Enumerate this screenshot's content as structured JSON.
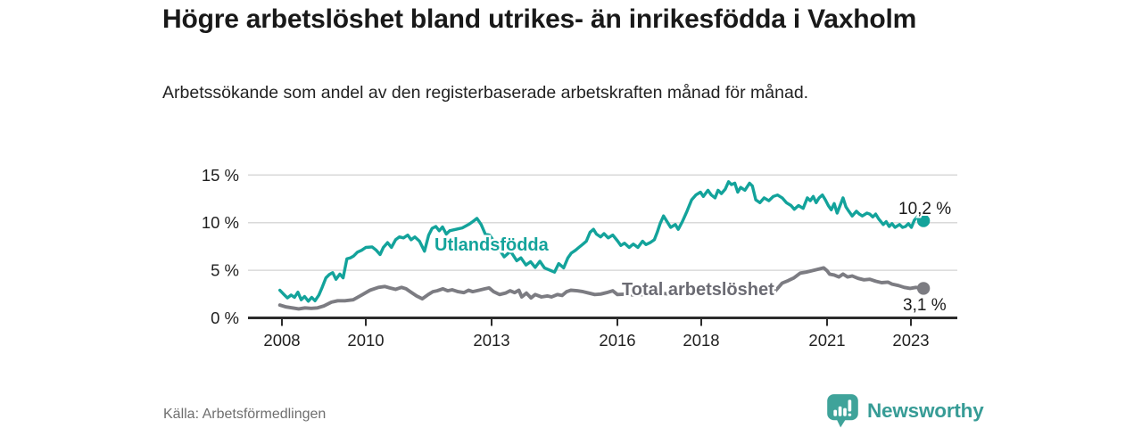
{
  "header": {
    "title": "Högre arbetslöshet bland utrikes- än inrikesfödda i Vaxholm",
    "subtitle": "Arbetssökande som andel av den registerbaserade arbetskraften månad för månad."
  },
  "footer": {
    "source": "Källa: Arbetsförmedlingen",
    "brand_name": "Newsworthy",
    "brand_color": "#379c96",
    "brand_icon_color": "#3fa39a"
  },
  "chart_data": {
    "type": "line",
    "unit": "percent of registered labour force",
    "grid": "horizontal",
    "x_axis": {
      "ticks": [
        2008,
        2010,
        2013,
        2016,
        2018,
        2021,
        2023
      ],
      "range": [
        2007.8,
        2024.1
      ]
    },
    "y_axis": {
      "ticks": [
        0,
        5,
        10,
        15
      ],
      "tick_suffix": " %",
      "range": [
        0,
        15.5
      ]
    },
    "series": [
      {
        "name": "Utlandsfödda",
        "color": "#13a39b",
        "label_color": "#13a39b",
        "end_value": 10.2,
        "end_value_label": "10,2 %",
        "points": [
          [
            2007.95,
            2.9
          ],
          [
            2008.05,
            2.45
          ],
          [
            2008.13,
            2.1
          ],
          [
            2008.22,
            2.4
          ],
          [
            2008.3,
            2.15
          ],
          [
            2008.38,
            2.7
          ],
          [
            2008.46,
            1.9
          ],
          [
            2008.54,
            2.25
          ],
          [
            2008.63,
            1.75
          ],
          [
            2008.71,
            2.15
          ],
          [
            2008.79,
            1.8
          ],
          [
            2008.88,
            2.4
          ],
          [
            2008.96,
            3.2
          ],
          [
            2009.05,
            4.2
          ],
          [
            2009.13,
            4.55
          ],
          [
            2009.21,
            4.75
          ],
          [
            2009.29,
            4.05
          ],
          [
            2009.38,
            4.6
          ],
          [
            2009.46,
            4.2
          ],
          [
            2009.55,
            6.2
          ],
          [
            2009.63,
            6.3
          ],
          [
            2009.71,
            6.5
          ],
          [
            2009.8,
            6.9
          ],
          [
            2009.9,
            7.1
          ],
          [
            2010.0,
            7.4
          ],
          [
            2010.15,
            7.45
          ],
          [
            2010.25,
            7.1
          ],
          [
            2010.34,
            6.65
          ],
          [
            2010.42,
            7.4
          ],
          [
            2010.52,
            7.9
          ],
          [
            2010.61,
            7.4
          ],
          [
            2010.71,
            8.2
          ],
          [
            2010.8,
            8.5
          ],
          [
            2010.9,
            8.4
          ],
          [
            2011.0,
            8.7
          ],
          [
            2011.08,
            8.2
          ],
          [
            2011.17,
            8.5
          ],
          [
            2011.28,
            8.05
          ],
          [
            2011.4,
            7.0
          ],
          [
            2011.5,
            8.7
          ],
          [
            2011.58,
            9.4
          ],
          [
            2011.67,
            9.6
          ],
          [
            2011.75,
            9.15
          ],
          [
            2011.83,
            9.55
          ],
          [
            2011.92,
            8.8
          ],
          [
            2012.0,
            9.15
          ],
          [
            2012.15,
            9.3
          ],
          [
            2012.3,
            9.45
          ],
          [
            2012.45,
            9.8
          ],
          [
            2012.55,
            10.1
          ],
          [
            2012.65,
            10.45
          ],
          [
            2012.75,
            9.8
          ],
          [
            2012.85,
            8.8
          ],
          [
            2012.95,
            8.7
          ],
          [
            2013.1,
            7.75
          ],
          [
            2013.3,
            6.4
          ],
          [
            2013.45,
            7.0
          ],
          [
            2013.6,
            6.0
          ],
          [
            2013.7,
            6.3
          ],
          [
            2013.82,
            5.55
          ],
          [
            2013.93,
            5.9
          ],
          [
            2014.04,
            5.3
          ],
          [
            2014.15,
            5.95
          ],
          [
            2014.26,
            5.25
          ],
          [
            2014.5,
            4.8
          ],
          [
            2014.6,
            5.7
          ],
          [
            2014.72,
            5.25
          ],
          [
            2014.82,
            6.3
          ],
          [
            2014.9,
            6.8
          ],
          [
            2015.0,
            7.1
          ],
          [
            2015.08,
            7.4
          ],
          [
            2015.18,
            7.75
          ],
          [
            2015.26,
            8.05
          ],
          [
            2015.35,
            9.0
          ],
          [
            2015.43,
            9.3
          ],
          [
            2015.5,
            8.8
          ],
          [
            2015.6,
            8.5
          ],
          [
            2015.68,
            8.85
          ],
          [
            2015.78,
            8.4
          ],
          [
            2015.89,
            8.7
          ],
          [
            2016.0,
            8.1
          ],
          [
            2016.08,
            7.6
          ],
          [
            2016.17,
            7.85
          ],
          [
            2016.28,
            7.4
          ],
          [
            2016.38,
            7.75
          ],
          [
            2016.49,
            7.4
          ],
          [
            2016.6,
            8.05
          ],
          [
            2016.68,
            7.7
          ],
          [
            2016.78,
            7.9
          ],
          [
            2016.88,
            8.2
          ],
          [
            2016.95,
            9.0
          ],
          [
            2017.02,
            9.9
          ],
          [
            2017.1,
            10.7
          ],
          [
            2017.27,
            9.5
          ],
          [
            2017.38,
            9.8
          ],
          [
            2017.45,
            9.3
          ],
          [
            2017.55,
            10.1
          ],
          [
            2017.66,
            11.2
          ],
          [
            2017.77,
            12.4
          ],
          [
            2017.87,
            12.9
          ],
          [
            2017.98,
            13.2
          ],
          [
            2018.05,
            12.75
          ],
          [
            2018.16,
            13.4
          ],
          [
            2018.24,
            12.9
          ],
          [
            2018.33,
            12.6
          ],
          [
            2018.4,
            13.4
          ],
          [
            2018.48,
            13.05
          ],
          [
            2018.57,
            13.5
          ],
          [
            2018.65,
            14.3
          ],
          [
            2018.72,
            14.0
          ],
          [
            2018.8,
            14.15
          ],
          [
            2018.87,
            13.2
          ],
          [
            2018.94,
            13.7
          ],
          [
            2019.04,
            13.4
          ],
          [
            2019.15,
            14.15
          ],
          [
            2019.22,
            13.85
          ],
          [
            2019.3,
            12.4
          ],
          [
            2019.4,
            12.1
          ],
          [
            2019.5,
            12.6
          ],
          [
            2019.61,
            12.3
          ],
          [
            2019.72,
            12.75
          ],
          [
            2019.82,
            12.9
          ],
          [
            2019.93,
            12.6
          ],
          [
            2020.03,
            12.1
          ],
          [
            2020.14,
            11.8
          ],
          [
            2020.22,
            11.4
          ],
          [
            2020.32,
            11.8
          ],
          [
            2020.43,
            11.5
          ],
          [
            2020.53,
            12.6
          ],
          [
            2020.6,
            12.3
          ],
          [
            2020.67,
            12.75
          ],
          [
            2020.74,
            12.1
          ],
          [
            2020.81,
            12.6
          ],
          [
            2020.89,
            12.9
          ],
          [
            2020.96,
            12.4
          ],
          [
            2021.03,
            11.8
          ],
          [
            2021.1,
            11.35
          ],
          [
            2021.17,
            12.0
          ],
          [
            2021.24,
            11.0
          ],
          [
            2021.31,
            11.8
          ],
          [
            2021.38,
            12.6
          ],
          [
            2021.45,
            11.65
          ],
          [
            2021.52,
            11.2
          ],
          [
            2021.6,
            10.7
          ],
          [
            2021.7,
            11.2
          ],
          [
            2021.77,
            10.9
          ],
          [
            2021.84,
            10.7
          ],
          [
            2021.95,
            11.0
          ],
          [
            2022.02,
            10.9
          ],
          [
            2022.09,
            10.6
          ],
          [
            2022.16,
            10.9
          ],
          [
            2022.23,
            10.4
          ],
          [
            2022.34,
            9.8
          ],
          [
            2022.41,
            10.1
          ],
          [
            2022.48,
            9.6
          ],
          [
            2022.55,
            9.9
          ],
          [
            2022.62,
            9.5
          ],
          [
            2022.73,
            9.8
          ],
          [
            2022.8,
            9.5
          ],
          [
            2022.87,
            9.6
          ],
          [
            2022.94,
            9.9
          ],
          [
            2023.01,
            9.5
          ],
          [
            2023.08,
            10.25
          ],
          [
            2023.15,
            10.6
          ],
          [
            2023.22,
            10.25
          ],
          [
            2023.3,
            10.2
          ]
        ]
      },
      {
        "name": "Total arbetslöshet",
        "color": "#7c7c82",
        "label_color": "#6b6b73",
        "end_value": 3.1,
        "end_value_label": "3,1 %",
        "points": [
          [
            2007.95,
            1.35
          ],
          [
            2008.1,
            1.15
          ],
          [
            2008.25,
            1.05
          ],
          [
            2008.4,
            0.95
          ],
          [
            2008.55,
            1.05
          ],
          [
            2008.7,
            1.0
          ],
          [
            2008.85,
            1.05
          ],
          [
            2009.0,
            1.25
          ],
          [
            2009.18,
            1.65
          ],
          [
            2009.33,
            1.8
          ],
          [
            2009.5,
            1.8
          ],
          [
            2009.7,
            1.9
          ],
          [
            2009.9,
            2.4
          ],
          [
            2010.1,
            2.9
          ],
          [
            2010.3,
            3.2
          ],
          [
            2010.45,
            3.3
          ],
          [
            2010.57,
            3.15
          ],
          [
            2010.71,
            3.0
          ],
          [
            2010.85,
            3.2
          ],
          [
            2010.96,
            3.05
          ],
          [
            2011.06,
            2.75
          ],
          [
            2011.21,
            2.3
          ],
          [
            2011.35,
            2.0
          ],
          [
            2011.49,
            2.45
          ],
          [
            2011.6,
            2.75
          ],
          [
            2011.7,
            2.85
          ],
          [
            2011.84,
            3.05
          ],
          [
            2011.95,
            2.85
          ],
          [
            2012.06,
            2.95
          ],
          [
            2012.2,
            2.75
          ],
          [
            2012.34,
            2.65
          ],
          [
            2012.45,
            2.9
          ],
          [
            2012.55,
            2.75
          ],
          [
            2012.7,
            2.9
          ],
          [
            2012.84,
            3.05
          ],
          [
            2012.94,
            3.15
          ],
          [
            2013.05,
            2.75
          ],
          [
            2013.19,
            2.45
          ],
          [
            2013.33,
            2.6
          ],
          [
            2013.44,
            2.85
          ],
          [
            2013.55,
            2.65
          ],
          [
            2013.65,
            2.9
          ],
          [
            2013.72,
            2.2
          ],
          [
            2013.83,
            2.6
          ],
          [
            2013.94,
            2.1
          ],
          [
            2014.04,
            2.45
          ],
          [
            2014.19,
            2.2
          ],
          [
            2014.33,
            2.3
          ],
          [
            2014.43,
            2.2
          ],
          [
            2014.57,
            2.45
          ],
          [
            2014.68,
            2.35
          ],
          [
            2014.79,
            2.75
          ],
          [
            2014.89,
            2.9
          ],
          [
            2015.04,
            2.85
          ],
          [
            2015.18,
            2.75
          ],
          [
            2015.32,
            2.6
          ],
          [
            2015.46,
            2.45
          ],
          [
            2015.6,
            2.5
          ],
          [
            2015.74,
            2.65
          ],
          [
            2015.89,
            2.85
          ],
          [
            2016.0,
            2.45
          ],
          [
            2016.2,
            2.5
          ],
          [
            2016.4,
            2.4
          ],
          [
            2016.6,
            2.45
          ],
          [
            2016.8,
            2.5
          ],
          [
            2017.0,
            2.6
          ],
          [
            2017.25,
            2.5
          ],
          [
            2017.5,
            2.4
          ],
          [
            2017.75,
            2.5
          ],
          [
            2018.0,
            2.55
          ],
          [
            2018.25,
            2.6
          ],
          [
            2018.5,
            2.5
          ],
          [
            2018.75,
            2.55
          ],
          [
            2019.0,
            2.65
          ],
          [
            2019.25,
            2.6
          ],
          [
            2019.5,
            2.65
          ],
          [
            2019.75,
            2.75
          ],
          [
            2019.93,
            3.65
          ],
          [
            2020.07,
            3.9
          ],
          [
            2020.21,
            4.2
          ],
          [
            2020.36,
            4.7
          ],
          [
            2020.5,
            4.8
          ],
          [
            2020.64,
            4.95
          ],
          [
            2020.78,
            5.1
          ],
          [
            2020.92,
            5.25
          ],
          [
            2021.0,
            4.95
          ],
          [
            2021.06,
            4.6
          ],
          [
            2021.17,
            4.5
          ],
          [
            2021.28,
            4.3
          ],
          [
            2021.38,
            4.6
          ],
          [
            2021.49,
            4.3
          ],
          [
            2021.6,
            4.4
          ],
          [
            2021.74,
            4.15
          ],
          [
            2021.88,
            4.0
          ],
          [
            2022.02,
            4.05
          ],
          [
            2022.16,
            3.85
          ],
          [
            2022.3,
            3.7
          ],
          [
            2022.45,
            3.75
          ],
          [
            2022.55,
            3.55
          ],
          [
            2022.7,
            3.4
          ],
          [
            2022.84,
            3.2
          ],
          [
            2022.98,
            3.1
          ],
          [
            2023.12,
            3.2
          ],
          [
            2023.3,
            3.1
          ]
        ]
      }
    ]
  }
}
